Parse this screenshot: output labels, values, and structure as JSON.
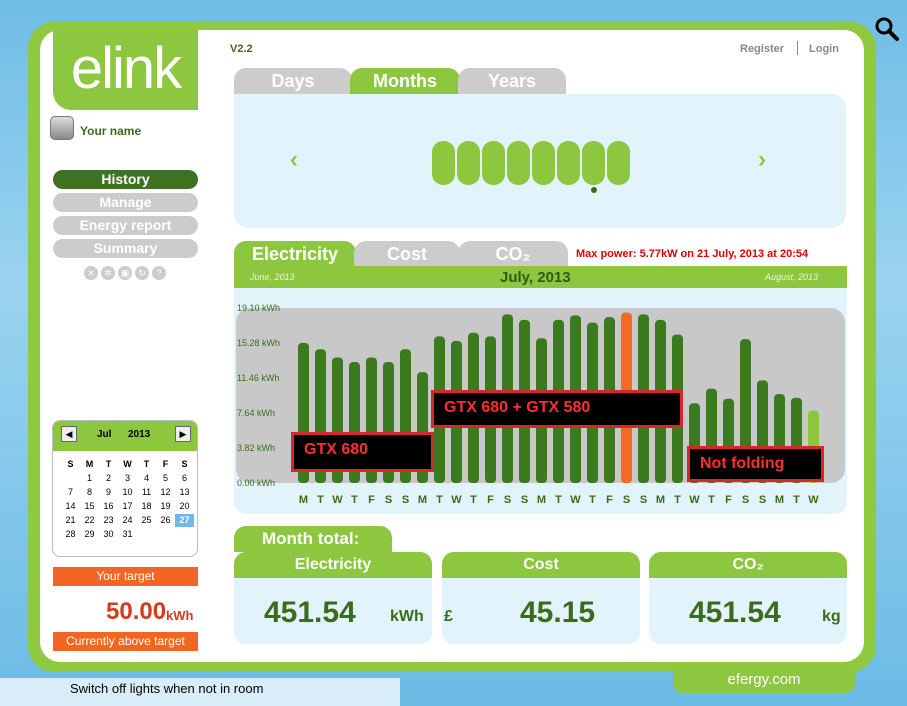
{
  "app": {
    "logo_text": "elink",
    "version": "V2.2",
    "username": "Your name",
    "register": "Register",
    "login": "Login",
    "brand_footer": "efergy.com"
  },
  "nav": {
    "items": [
      {
        "label": "History",
        "active": true
      },
      {
        "label": "Manage",
        "active": false
      },
      {
        "label": "Energy report",
        "active": false
      },
      {
        "label": "Summary",
        "active": false
      }
    ],
    "icons": [
      "close-icon",
      "settings-icon",
      "print-icon",
      "refresh-icon",
      "help-icon"
    ]
  },
  "period_tabs": [
    {
      "label": "Days",
      "active": false
    },
    {
      "label": "Months",
      "active": true
    },
    {
      "label": "Years",
      "active": false
    }
  ],
  "period_selector": {
    "prev_icon": "chevron-left-icon",
    "next_icon": "chevron-right-icon",
    "pill_count": 8,
    "selected_index": 6
  },
  "chart_tabs": [
    {
      "label": "Electricity",
      "active": true
    },
    {
      "label": "Cost",
      "active": false
    },
    {
      "label": "CO₂",
      "active": false
    }
  ],
  "max_power": "Max power: 5.77kW on 21 July, 2013 at 20:54",
  "month_nav": {
    "prev": "June, 2013",
    "current": "July, 2013",
    "next": "August, 2013"
  },
  "chart_data": {
    "type": "bar",
    "ytick_labels": [
      "0.00 kWh",
      "3.82 kWh",
      "7.64 kWh",
      "11.46 kWh",
      "15.28 kWh",
      "19.10 kWh"
    ],
    "ylim": [
      0,
      19.1
    ],
    "categories": [
      "M",
      "T",
      "W",
      "T",
      "F",
      "S",
      "S",
      "M",
      "T",
      "W",
      "T",
      "F",
      "S",
      "S",
      "M",
      "T",
      "W",
      "T",
      "F",
      "S",
      "S",
      "M",
      "T",
      "W",
      "T",
      "F",
      "S",
      "S",
      "M",
      "T",
      "W"
    ],
    "values": [
      15.3,
      14.6,
      13.7,
      13.2,
      13.7,
      13.2,
      14.6,
      12.1,
      16.0,
      15.5,
      16.4,
      16.0,
      18.4,
      17.8,
      15.8,
      17.8,
      18.3,
      17.5,
      18.1,
      18.6,
      18.4,
      17.8,
      16.2,
      8.7,
      10.3,
      9.2,
      15.7,
      11.2,
      9.7,
      9.3,
      7.9
    ],
    "highlight_index": 19,
    "highlight_color": "#f36a21",
    "bar_color": "#3c7a1f",
    "current_day_color": "#8dc63f",
    "current_day_index": 30,
    "grid": false,
    "annotations": [
      {
        "text": "GTX 680"
      },
      {
        "text": "GTX 680 + GTX 580"
      },
      {
        "text": "Not folding"
      }
    ]
  },
  "totals": {
    "title": "Month total:",
    "electricity": {
      "label": "Electricity",
      "value": "451.54",
      "unit": "kWh"
    },
    "cost": {
      "label": "Cost",
      "currency": "£",
      "value": "45.15"
    },
    "co2": {
      "label": "CO₂",
      "value": "451.54",
      "unit": "kg"
    }
  },
  "calendar": {
    "prev": "◀",
    "next": "▶",
    "month": "Jul",
    "year": "2013",
    "day_headers": [
      "S",
      "M",
      "T",
      "W",
      "T",
      "F",
      "S"
    ],
    "leading_blanks": 1,
    "days": [
      "1",
      "2",
      "3",
      "4",
      "5",
      "6",
      "7",
      "8",
      "9",
      "10",
      "11",
      "12",
      "13",
      "14",
      "15",
      "16",
      "17",
      "18",
      "19",
      "20",
      "21",
      "22",
      "23",
      "24",
      "25",
      "26",
      "27",
      "28",
      "29",
      "30",
      "31"
    ],
    "selected": "27"
  },
  "target": {
    "header": "Your target",
    "value": "50.00",
    "unit": "kWh",
    "status": "Currently above target"
  },
  "tip": "Switch off lights when not in room"
}
